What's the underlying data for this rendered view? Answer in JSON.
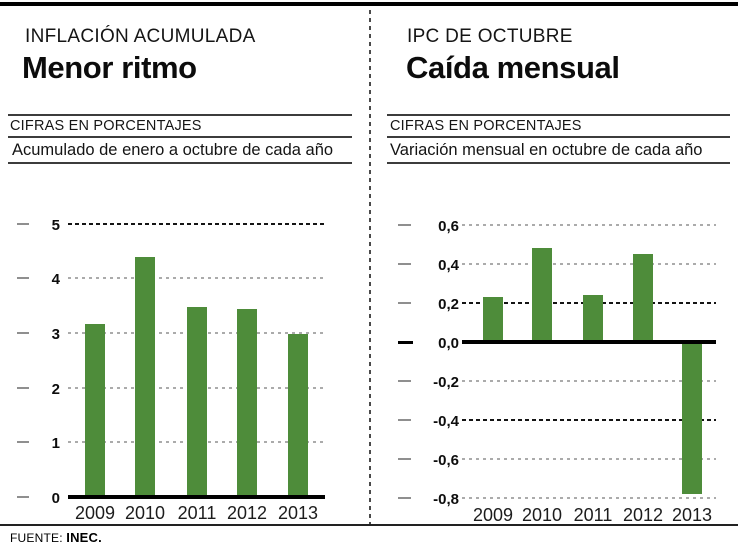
{
  "source": {
    "label": "FUENTE:",
    "value": "INEC."
  },
  "colors": {
    "bar_green": "#4e8c3a",
    "grid_light": "#ababab",
    "grid_dark": "#141414",
    "rule": "#3c3c3c"
  },
  "panels": [
    {
      "kicker": "INFLACIÓN ACUMULADA",
      "title": "Menor ritmo",
      "note": "CIFRAS EN PORCENTAJES",
      "subtitle": "Acumulado de enero a octubre de cada año"
    },
    {
      "kicker": "IPC DE OCTUBRE",
      "title": "Caída mensual",
      "note": "CIFRAS EN PORCENTAJES",
      "subtitle": "Variación mensual en octubre de cada año"
    }
  ],
  "chart_data": [
    {
      "type": "bar",
      "title": "Menor ritmo",
      "subtitle": "Acumulado de enero a octubre de cada año",
      "units": "porcentajes",
      "categories": [
        "2009",
        "2010",
        "2011",
        "2012",
        "2013"
      ],
      "values": [
        3.17,
        4.38,
        3.48,
        3.43,
        2.98
      ],
      "ylim": [
        0,
        5
      ],
      "baseline": 0,
      "grid": "dotted-horizontal",
      "legend": "none",
      "yticks": [
        {
          "value": 5,
          "label": "5",
          "grid": "dark",
          "tick_black": false
        },
        {
          "value": 4,
          "label": "4",
          "grid": "light",
          "tick_black": false
        },
        {
          "value": 3,
          "label": "3",
          "grid": "light",
          "tick_black": false
        },
        {
          "value": 2,
          "label": "2",
          "grid": "light",
          "tick_black": false
        },
        {
          "value": 1,
          "label": "1",
          "grid": "light",
          "tick_black": false
        },
        {
          "value": 0,
          "label": "0",
          "grid": "baseline",
          "tick_black": false
        }
      ]
    },
    {
      "type": "bar",
      "title": "Caída mensual",
      "subtitle": "Variación mensual en octubre de cada año",
      "units": "porcentajes",
      "categories": [
        "2009",
        "2010",
        "2011",
        "2012",
        "2013"
      ],
      "values": [
        0.23,
        0.48,
        0.24,
        0.45,
        -0.78
      ],
      "ylim": [
        -0.8,
        0.6
      ],
      "baseline": 0,
      "grid": "dotted-horizontal",
      "legend": "none",
      "yticks": [
        {
          "value": 0.6,
          "label": "0,6",
          "grid": "light",
          "tick_black": false
        },
        {
          "value": 0.4,
          "label": "0,4",
          "grid": "light",
          "tick_black": false
        },
        {
          "value": 0.2,
          "label": "0,2",
          "grid": "dark",
          "tick_black": false
        },
        {
          "value": 0.0,
          "label": "0,0",
          "grid": "baseline",
          "tick_black": true
        },
        {
          "value": -0.2,
          "label": "-0,2",
          "grid": "light",
          "tick_black": false
        },
        {
          "value": -0.4,
          "label": "-0,4",
          "grid": "dark",
          "tick_black": false
        },
        {
          "value": -0.6,
          "label": "-0,6",
          "grid": "light",
          "tick_black": false
        },
        {
          "value": -0.8,
          "label": "-0,8",
          "grid": "light",
          "tick_black": false
        }
      ]
    }
  ]
}
